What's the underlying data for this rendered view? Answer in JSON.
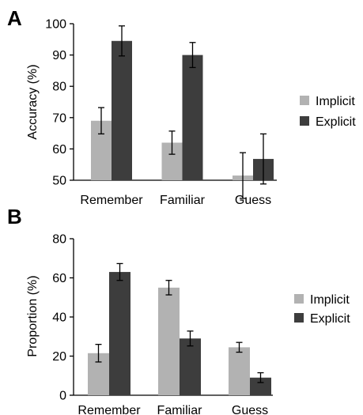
{
  "chart_data": [
    {
      "panel": "A",
      "type": "bar",
      "categories": [
        "Remember",
        "Familiar",
        "Guess"
      ],
      "ylabel": "Accuracy (%)",
      "ylim": [
        50,
        100
      ],
      "yticks": [
        "50",
        "60",
        "70",
        "80",
        "90",
        "100"
      ],
      "grid": false,
      "legend_position": "right",
      "series": [
        {
          "name": "Implicit",
          "color": "#b2b2b2",
          "values": [
            69,
            62,
            51.5
          ],
          "errors": [
            4.2,
            3.7,
            7.3
          ]
        },
        {
          "name": "Explicit",
          "color": "#3d3d3d",
          "values": [
            94.5,
            90,
            56.8
          ],
          "errors": [
            4.8,
            4.0,
            8.0
          ]
        }
      ]
    },
    {
      "panel": "B",
      "type": "bar",
      "categories": [
        "Remember",
        "Familiar",
        "Guess"
      ],
      "ylabel": "Proportion (%)",
      "ylim": [
        0,
        80
      ],
      "yticks": [
        "0",
        "20",
        "40",
        "60",
        "80"
      ],
      "grid": false,
      "legend_position": "right",
      "series": [
        {
          "name": "Implicit",
          "color": "#b2b2b2",
          "values": [
            21.5,
            55,
            24.5
          ],
          "errors": [
            4.5,
            3.7,
            2.5
          ]
        },
        {
          "name": "Explicit",
          "color": "#3d3d3d",
          "values": [
            63,
            29,
            9
          ],
          "errors": [
            4.3,
            3.8,
            2.5
          ]
        }
      ]
    }
  ]
}
